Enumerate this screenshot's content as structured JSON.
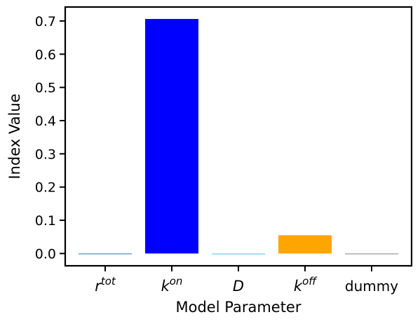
{
  "chart_data": {
    "type": "bar",
    "categories": [
      {
        "base": "r",
        "sup": "tot",
        "italic": true
      },
      {
        "base": "k",
        "sup": "on",
        "italic": true
      },
      {
        "base": "D",
        "sup": "",
        "italic": true
      },
      {
        "base": "k",
        "sup": "off",
        "italic": true
      },
      {
        "base": "dummy",
        "sup": "",
        "italic": false
      }
    ],
    "values": [
      0.0,
      0.706,
      -0.003,
      0.055,
      0.0
    ],
    "colors": [
      "#1f77b4",
      "#0000ff",
      "#87ceeb",
      "#ffa500",
      "#808080"
    ],
    "xlabel": "Model Parameter",
    "ylabel": "Index Value",
    "ylim": [
      -0.037,
      0.742
    ],
    "yticks": [
      0.0,
      0.1,
      0.2,
      0.3,
      0.4,
      0.5,
      0.6,
      0.7
    ],
    "ytick_labels": [
      "0.0",
      "0.1",
      "0.2",
      "0.3",
      "0.4",
      "0.5",
      "0.6",
      "0.7"
    ],
    "grid": false
  }
}
